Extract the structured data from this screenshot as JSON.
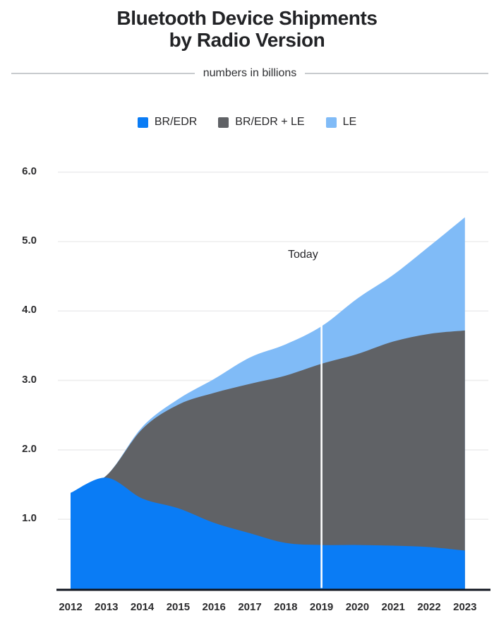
{
  "title_line1": "Bluetooth Device Shipments",
  "title_line2": "by Radio Version",
  "subtitle": "numbers in billions",
  "colors": {
    "br_edr": "#0a7cf5",
    "br_edr_le": "#606266",
    "le": "#80bbf7",
    "axis_line": "#10161f",
    "gridline": "#ededee",
    "divider": "#c8cbce",
    "text": "#222326",
    "today_line": "#ffffff"
  },
  "chart_data": {
    "type": "area",
    "stacked": true,
    "title": "Bluetooth Device Shipments by Radio Version",
    "subtitle": "numbers in billions",
    "categories": [
      "2012",
      "2013",
      "2014",
      "2015",
      "2016",
      "2017",
      "2018",
      "2019",
      "2020",
      "2021",
      "2022",
      "2023"
    ],
    "series": [
      {
        "name": "BR/EDR",
        "color": "#0a7cf5",
        "values": [
          1.38,
          1.6,
          1.3,
          1.16,
          0.95,
          0.8,
          0.66,
          0.63,
          0.63,
          0.62,
          0.6,
          0.55
        ]
      },
      {
        "name": "BR/EDR + LE",
        "color": "#606266",
        "values": [
          0.0,
          0.03,
          1.0,
          1.49,
          1.87,
          2.15,
          2.41,
          2.61,
          2.75,
          2.94,
          3.07,
          3.17
        ]
      },
      {
        "name": "LE",
        "color": "#80bbf7",
        "values": [
          0.0,
          0.0,
          0.03,
          0.08,
          0.2,
          0.38,
          0.45,
          0.54,
          0.8,
          0.96,
          1.26,
          1.63
        ]
      }
    ],
    "yticks": {
      "values": [
        1,
        2,
        3,
        4,
        5,
        6
      ],
      "labels": [
        "1.0",
        "2.0",
        "3.0",
        "4.0",
        "5.0",
        "6.0"
      ]
    },
    "ylim": [
      0,
      6.3
    ],
    "grid": true,
    "legend_position": "top",
    "annotations": [
      {
        "text": "Today",
        "x": "2019"
      }
    ]
  }
}
